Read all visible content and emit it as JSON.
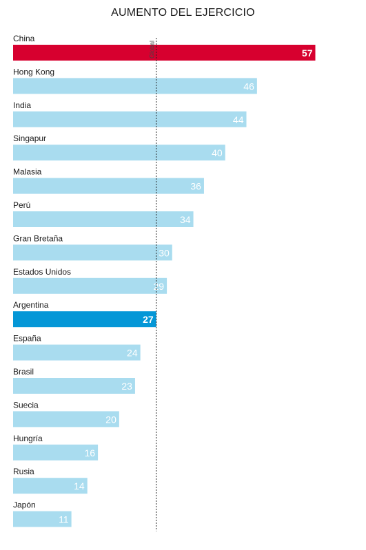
{
  "chart_data": {
    "type": "bar",
    "orientation": "horizontal",
    "title": "AUMENTO DEL EJERCICIO",
    "categories": [
      "China",
      "Hong Kong",
      "India",
      "Singapur",
      "Malasia",
      "Perú",
      "Gran Bretaña",
      "Estados Unidos",
      "Argentina",
      "España",
      "Brasil",
      "Suecia",
      "Hungría",
      "Rusia",
      "Japón"
    ],
    "values": [
      57,
      46,
      44,
      40,
      36,
      34,
      30,
      29,
      27,
      24,
      23,
      20,
      16,
      14,
      11
    ],
    "highlights": {
      "China": "#d7002f",
      "Argentina": "#0497d7"
    },
    "default_color": "#a9dcef",
    "reference_line": {
      "label": "Global",
      "value": 27
    },
    "xlim": [
      0,
      57
    ],
    "grid": false,
    "legend": "none"
  }
}
